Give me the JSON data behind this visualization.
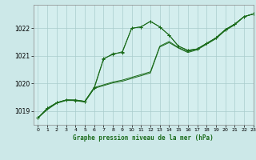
{
  "xlabel": "Graphe pression niveau de la mer (hPa)",
  "background_color": "#cce8e8",
  "plot_bg_color": "#d4eeee",
  "grid_color": "#aacccc",
  "line_color": "#1a6b1a",
  "ylim": [
    1018.5,
    1022.85
  ],
  "xlim": [
    -0.5,
    23
  ],
  "yticks": [
    1019,
    1020,
    1021,
    1022
  ],
  "xticks": [
    0,
    1,
    2,
    3,
    4,
    5,
    6,
    7,
    8,
    9,
    10,
    11,
    12,
    13,
    14,
    15,
    16,
    17,
    18,
    19,
    20,
    21,
    22,
    23
  ],
  "series": [
    {
      "x": [
        0,
        1,
        2,
        3,
        4,
        5,
        6,
        7,
        8,
        9,
        10,
        11,
        12,
        13,
        14,
        15,
        16,
        17,
        18,
        19,
        20,
        21,
        22,
        23
      ],
      "y": [
        1018.75,
        1019.1,
        1019.3,
        1019.4,
        1019.4,
        1019.35,
        1019.85,
        1020.9,
        1021.05,
        1021.15,
        1022.0,
        1022.05,
        1022.25,
        1022.05,
        1021.75,
        1021.35,
        1021.2,
        1021.25,
        1021.45,
        1021.65,
        1021.95,
        1022.15,
        1022.42,
        1022.52
      ],
      "marker": true
    },
    {
      "x": [
        0,
        1,
        2,
        3,
        4,
        5,
        6,
        7,
        8,
        9,
        10,
        11,
        12,
        13,
        14,
        15,
        16,
        17,
        18,
        19,
        20,
        21,
        22,
        23
      ],
      "y": [
        1018.75,
        1019.05,
        1019.28,
        1019.38,
        1019.38,
        1019.32,
        1019.82,
        1019.92,
        1020.02,
        1020.08,
        1020.18,
        1020.28,
        1020.38,
        1021.32,
        1021.48,
        1021.28,
        1021.12,
        1021.22,
        1021.42,
        1021.62,
        1021.92,
        1022.12,
        1022.42,
        1022.52
      ],
      "marker": false
    },
    {
      "x": [
        0,
        1,
        2,
        3,
        4,
        5,
        6,
        7,
        8,
        9,
        10,
        11,
        12,
        13,
        14,
        15,
        16,
        17,
        18,
        19,
        20,
        21,
        22,
        23
      ],
      "y": [
        1018.75,
        1019.08,
        1019.3,
        1019.4,
        1019.4,
        1019.35,
        1019.85,
        1019.95,
        1020.05,
        1020.12,
        1020.22,
        1020.32,
        1020.42,
        1021.35,
        1021.52,
        1021.3,
        1021.15,
        1021.25,
        1021.45,
        1021.65,
        1021.95,
        1022.15,
        1022.42,
        1022.52
      ],
      "marker": false
    },
    {
      "x": [
        0,
        1,
        2,
        3,
        4,
        5,
        6,
        7,
        8,
        9,
        10,
        11,
        12,
        13,
        14,
        15,
        16,
        17,
        18,
        19,
        20,
        21,
        22,
        23
      ],
      "y": [
        1018.75,
        1019.1,
        1019.3,
        1019.4,
        1019.38,
        1019.35,
        1019.82,
        1020.88,
        1021.08,
        1021.12,
        1022.0,
        1022.05,
        1022.25,
        1022.05,
        1021.75,
        1021.35,
        1021.2,
        1021.25,
        1021.45,
        1021.65,
        1021.95,
        1022.15,
        1022.42,
        1022.52
      ],
      "marker": true
    }
  ]
}
